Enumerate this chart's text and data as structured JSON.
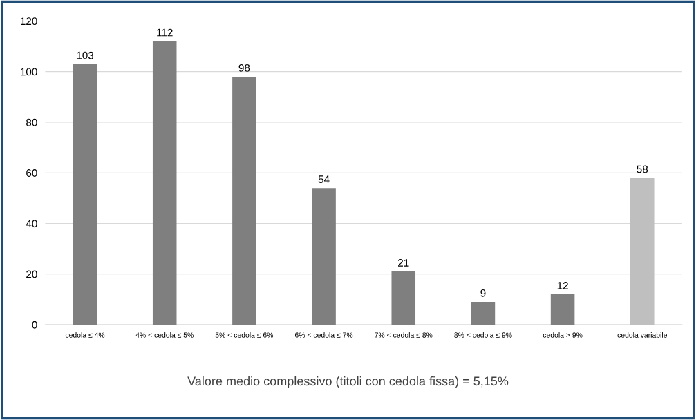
{
  "chart_data": {
    "type": "bar",
    "categories": [
      "cedola ≤ 4%",
      "4% < cedola ≤ 5%",
      "5% < cedola ≤ 6%",
      "6% < cedola ≤ 7%",
      "7% < cedola ≤ 8%",
      "8% < cedola ≤ 9%",
      "cedola > 9%",
      "cedola variabile"
    ],
    "values": [
      103,
      112,
      98,
      54,
      21,
      9,
      12,
      58
    ],
    "colors": [
      "#7f7f7f",
      "#7f7f7f",
      "#7f7f7f",
      "#7f7f7f",
      "#7f7f7f",
      "#7f7f7f",
      "#7f7f7f",
      "#bfbfbf"
    ],
    "ylim": [
      0,
      120
    ],
    "yticks": [
      0,
      20,
      40,
      60,
      80,
      100,
      120
    ],
    "grid": "y",
    "data_labels": true,
    "legend": false,
    "annotations": [
      "Valore medio complessivo (titoli con cedola fissa) = 5,15%"
    ]
  }
}
